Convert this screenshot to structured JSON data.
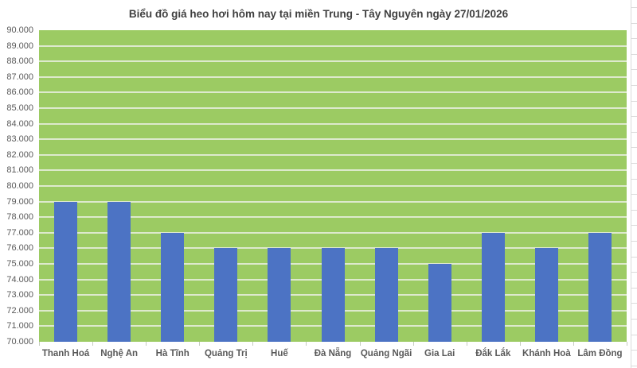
{
  "chart_data": {
    "type": "bar",
    "title": "Biểu đồ giá heo hơi hôm nay tại miền Trung - Tây Nguyên ngày 27/01/2026",
    "categories": [
      "Thanh Hoá",
      "Nghệ An",
      "Hà Tĩnh",
      "Quảng Trị",
      "Huế",
      "Đà Nẵng",
      "Quảng Ngãi",
      "Gia Lai",
      "Đắk Lắk",
      "Khánh Hoà",
      "Lâm Đồng"
    ],
    "values": [
      79000,
      79000,
      77000,
      76000,
      76000,
      76000,
      76000,
      75000,
      77000,
      76000,
      77000
    ],
    "xlabel": "",
    "ylabel": "",
    "ylim": [
      70000,
      90000
    ],
    "ytick_step": 1000,
    "ytick_labels": [
      "90.000",
      "89.000",
      "88.000",
      "87.000",
      "86.000",
      "85.000",
      "84.000",
      "83.000",
      "82.000",
      "81.000",
      "80.000",
      "79.000",
      "78.000",
      "77.000",
      "76.000",
      "75.000",
      "74.000",
      "73.000",
      "72.000",
      "71.000",
      "70.000"
    ],
    "grid": "horizontal",
    "legend": "none",
    "colors": {
      "bar": "#4C73C4",
      "plot_background": "#9CCB63",
      "gridline": "#DDE9CD",
      "title_text": "#404040",
      "axis_text": "#595959",
      "axis_tick": "#C6CDC0",
      "sheet_line": "#DBDBDB",
      "page_background": "#FFFFFF"
    }
  }
}
